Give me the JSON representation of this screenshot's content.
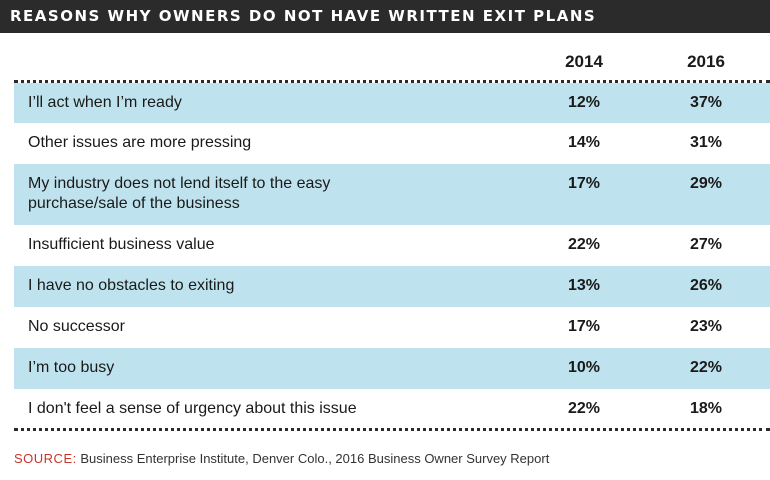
{
  "title": "REASONS WHY OWNERS DO NOT HAVE WRITTEN EXIT PLANS",
  "columns": [
    "2014",
    "2016"
  ],
  "colors": {
    "title_bg": "#2b2b2b",
    "row_shade": "#bfe3ee",
    "source_label": "#c8352a"
  },
  "chart_data": {
    "type": "table",
    "title": "REASONS WHY OWNERS DO NOT HAVE WRITTEN EXIT PLANS",
    "columns": [
      "2014",
      "2016"
    ],
    "rows": [
      {
        "label": "I’ll act when I’m ready",
        "v2014": "12%",
        "v2016": "37%"
      },
      {
        "label": "Other issues are more pressing",
        "v2014": "14%",
        "v2016": "31%"
      },
      {
        "label": "My industry does not lend itself to the easy purchase/sale of the business",
        "v2014": "17%",
        "v2016": "29%"
      },
      {
        "label": "Insufficient business value",
        "v2014": "22%",
        "v2016": "27%"
      },
      {
        "label": "I have no obstacles to exiting",
        "v2014": "13%",
        "v2016": "26%"
      },
      {
        "label": "No successor",
        "v2014": "17%",
        "v2016": "23%"
      },
      {
        "label": "I’m too busy",
        "v2014": "10%",
        "v2016": "22%"
      },
      {
        "label": "I don't feel a sense of urgency about this issue",
        "v2014": "22%",
        "v2016": "18%"
      }
    ]
  },
  "source": {
    "label": "SOURCE:",
    "text": "Business Enterprise Institute, Denver Colo., 2016 Business Owner Survey Report"
  }
}
